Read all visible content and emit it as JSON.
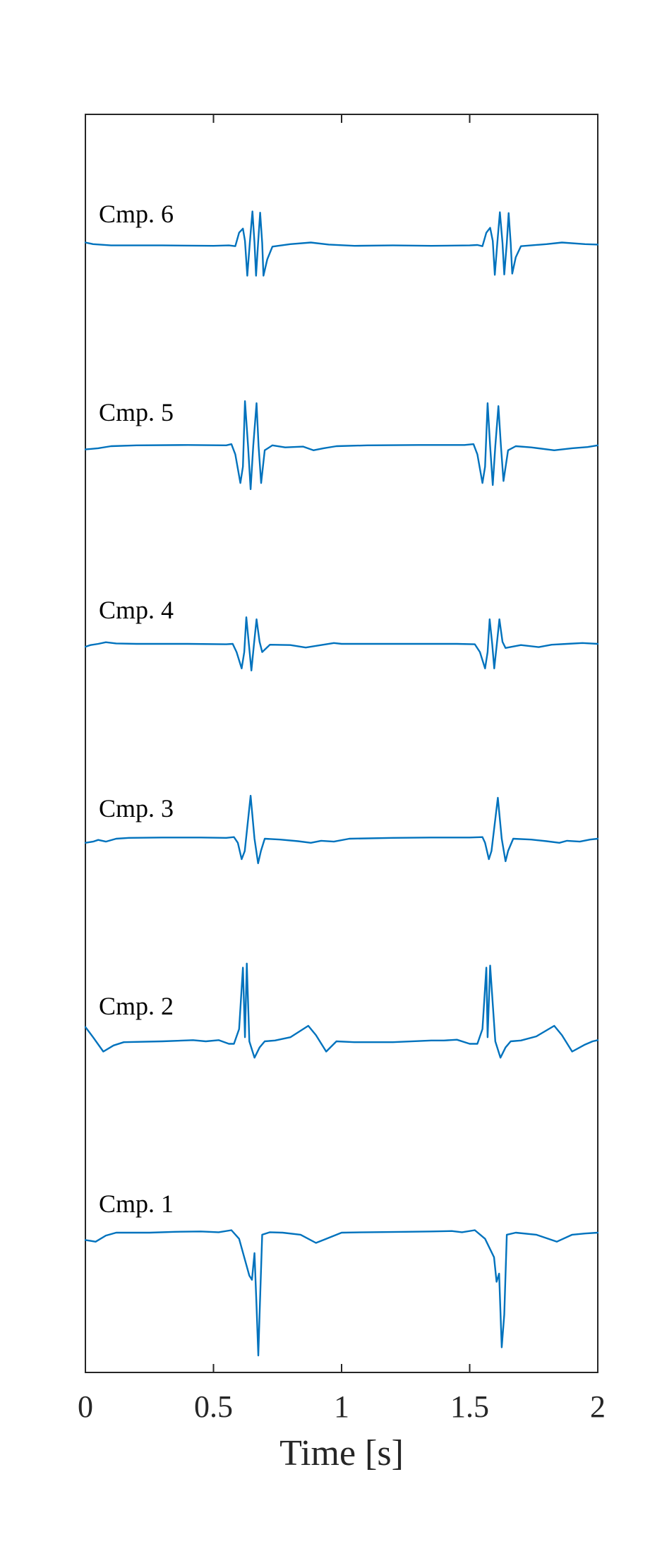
{
  "chart_data": {
    "type": "line",
    "title": "",
    "xlabel": "Time [s]",
    "ylabel": "",
    "xlim": [
      0,
      2
    ],
    "xticks": [
      0,
      0.5,
      1,
      1.5,
      2
    ],
    "xtick_labels": [
      "0",
      "0.5",
      "1",
      "1.5",
      "2"
    ],
    "grid": false,
    "legend": "none",
    "color": "#0072BD",
    "series": [
      {
        "name": "Cmp. 6",
        "points": [
          [
            0,
            0.06
          ],
          [
            0.03,
            0.02
          ],
          [
            0.1,
            -0.01
          ],
          [
            0.3,
            -0.01
          ],
          [
            0.5,
            -0.02
          ],
          [
            0.56,
            -0.01
          ],
          [
            0.585,
            -0.03
          ],
          [
            0.6,
            0.3
          ],
          [
            0.615,
            0.4
          ],
          [
            0.623,
            0.1
          ],
          [
            0.632,
            -0.75
          ],
          [
            0.642,
            0.06
          ],
          [
            0.652,
            0.82
          ],
          [
            0.66,
            0.05
          ],
          [
            0.666,
            -0.75
          ],
          [
            0.674,
            0.05
          ],
          [
            0.682,
            0.79
          ],
          [
            0.69,
            0.05
          ],
          [
            0.695,
            -0.75
          ],
          [
            0.71,
            -0.35
          ],
          [
            0.73,
            -0.04
          ],
          [
            0.8,
            0.02
          ],
          [
            0.88,
            0.06
          ],
          [
            0.95,
            0.01
          ],
          [
            1.05,
            -0.02
          ],
          [
            1.2,
            -0.01
          ],
          [
            1.35,
            -0.02
          ],
          [
            1.5,
            -0.01
          ],
          [
            1.53,
            0.0
          ],
          [
            1.55,
            -0.03
          ],
          [
            1.565,
            0.3
          ],
          [
            1.58,
            0.42
          ],
          [
            1.59,
            0.1
          ],
          [
            1.598,
            -0.73
          ],
          [
            1.608,
            0.06
          ],
          [
            1.618,
            0.8
          ],
          [
            1.628,
            0.05
          ],
          [
            1.635,
            -0.72
          ],
          [
            1.645,
            0.05
          ],
          [
            1.652,
            0.78
          ],
          [
            1.66,
            0.05
          ],
          [
            1.666,
            -0.7
          ],
          [
            1.68,
            -0.3
          ],
          [
            1.7,
            -0.03
          ],
          [
            1.8,
            0.02
          ],
          [
            1.86,
            0.06
          ],
          [
            1.95,
            0.02
          ],
          [
            2,
            0.01
          ]
        ]
      },
      {
        "name": "Cmp. 5",
        "points": [
          [
            0,
            -0.08
          ],
          [
            0.05,
            -0.05
          ],
          [
            0.1,
            0.0
          ],
          [
            0.2,
            0.02
          ],
          [
            0.4,
            0.03
          ],
          [
            0.55,
            0.02
          ],
          [
            0.57,
            0.05
          ],
          [
            0.585,
            -0.2
          ],
          [
            0.605,
            -0.9
          ],
          [
            0.615,
            -0.5
          ],
          [
            0.623,
            1.1
          ],
          [
            0.635,
            0.0
          ],
          [
            0.645,
            -1.05
          ],
          [
            0.655,
            0.0
          ],
          [
            0.668,
            1.05
          ],
          [
            0.676,
            0.0
          ],
          [
            0.686,
            -0.9
          ],
          [
            0.7,
            -0.1
          ],
          [
            0.73,
            0.02
          ],
          [
            0.78,
            -0.03
          ],
          [
            0.85,
            -0.01
          ],
          [
            0.89,
            -0.1
          ],
          [
            0.93,
            -0.05
          ],
          [
            0.98,
            0.0
          ],
          [
            1.1,
            0.02
          ],
          [
            1.3,
            0.03
          ],
          [
            1.48,
            0.03
          ],
          [
            1.515,
            0.05
          ],
          [
            1.53,
            -0.2
          ],
          [
            1.55,
            -0.9
          ],
          [
            1.56,
            -0.5
          ],
          [
            1.57,
            1.05
          ],
          [
            1.58,
            0.0
          ],
          [
            1.59,
            -0.95
          ],
          [
            1.6,
            0.0
          ],
          [
            1.612,
            0.98
          ],
          [
            1.622,
            0.0
          ],
          [
            1.632,
            -0.85
          ],
          [
            1.65,
            -0.1
          ],
          [
            1.68,
            0.0
          ],
          [
            1.74,
            -0.03
          ],
          [
            1.83,
            -0.1
          ],
          [
            1.9,
            -0.05
          ],
          [
            1.96,
            -0.02
          ],
          [
            2,
            0.02
          ]
        ]
      },
      {
        "name": "Cmp. 4",
        "points": [
          [
            0,
            -0.07
          ],
          [
            0.02,
            -0.03
          ],
          [
            0.05,
            0.0
          ],
          [
            0.08,
            0.04
          ],
          [
            0.12,
            0.01
          ],
          [
            0.2,
            0.0
          ],
          [
            0.4,
            0.0
          ],
          [
            0.55,
            -0.01
          ],
          [
            0.575,
            0.0
          ],
          [
            0.59,
            -0.2
          ],
          [
            0.61,
            -0.6
          ],
          [
            0.62,
            -0.2
          ],
          [
            0.628,
            0.65
          ],
          [
            0.638,
            0.0
          ],
          [
            0.648,
            -0.65
          ],
          [
            0.658,
            0.0
          ],
          [
            0.668,
            0.6
          ],
          [
            0.68,
            0.05
          ],
          [
            0.69,
            -0.2
          ],
          [
            0.72,
            -0.02
          ],
          [
            0.8,
            -0.03
          ],
          [
            0.86,
            -0.09
          ],
          [
            0.92,
            -0.03
          ],
          [
            0.97,
            0.02
          ],
          [
            1.0,
            0.0
          ],
          [
            1.2,
            0.0
          ],
          [
            1.45,
            0.0
          ],
          [
            1.52,
            -0.01
          ],
          [
            1.54,
            -0.2
          ],
          [
            1.56,
            -0.6
          ],
          [
            1.57,
            -0.2
          ],
          [
            1.578,
            0.6
          ],
          [
            1.588,
            0.0
          ],
          [
            1.596,
            -0.6
          ],
          [
            1.606,
            0.0
          ],
          [
            1.616,
            0.6
          ],
          [
            1.628,
            0.05
          ],
          [
            1.64,
            -0.1
          ],
          [
            1.7,
            -0.03
          ],
          [
            1.77,
            -0.08
          ],
          [
            1.82,
            -0.02
          ],
          [
            1.88,
            0.0
          ],
          [
            1.94,
            0.02
          ],
          [
            2,
            0.0
          ]
        ]
      },
      {
        "name": "Cmp. 3",
        "points": [
          [
            0,
            -0.1
          ],
          [
            0.03,
            -0.07
          ],
          [
            0.05,
            -0.03
          ],
          [
            0.08,
            -0.07
          ],
          [
            0.12,
            0.0
          ],
          [
            0.17,
            0.02
          ],
          [
            0.3,
            0.03
          ],
          [
            0.45,
            0.03
          ],
          [
            0.55,
            0.02
          ],
          [
            0.58,
            0.04
          ],
          [
            0.595,
            -0.1
          ],
          [
            0.61,
            -0.5
          ],
          [
            0.622,
            -0.3
          ],
          [
            0.645,
            1.05
          ],
          [
            0.66,
            0.0
          ],
          [
            0.674,
            -0.6
          ],
          [
            0.685,
            -0.3
          ],
          [
            0.7,
            0.0
          ],
          [
            0.76,
            -0.02
          ],
          [
            0.83,
            -0.06
          ],
          [
            0.88,
            -0.1
          ],
          [
            0.92,
            -0.05
          ],
          [
            0.97,
            -0.07
          ],
          [
            1.03,
            0.0
          ],
          [
            1.2,
            0.02
          ],
          [
            1.35,
            0.03
          ],
          [
            1.5,
            0.03
          ],
          [
            1.55,
            0.04
          ],
          [
            1.56,
            -0.1
          ],
          [
            1.575,
            -0.5
          ],
          [
            1.585,
            -0.3
          ],
          [
            1.61,
            1.0
          ],
          [
            1.625,
            0.0
          ],
          [
            1.64,
            -0.55
          ],
          [
            1.65,
            -0.3
          ],
          [
            1.67,
            0.0
          ],
          [
            1.74,
            -0.02
          ],
          [
            1.8,
            -0.06
          ],
          [
            1.85,
            -0.1
          ],
          [
            1.88,
            -0.05
          ],
          [
            1.93,
            -0.07
          ],
          [
            1.97,
            -0.02
          ],
          [
            2,
            0.0
          ]
        ]
      },
      {
        "name": "Cmp. 2",
        "points": [
          [
            0,
            0.35
          ],
          [
            0.03,
            0.1
          ],
          [
            0.07,
            -0.25
          ],
          [
            0.11,
            -0.1
          ],
          [
            0.15,
            -0.02
          ],
          [
            0.3,
            0.0
          ],
          [
            0.42,
            0.03
          ],
          [
            0.47,
            0.0
          ],
          [
            0.52,
            0.03
          ],
          [
            0.56,
            -0.06
          ],
          [
            0.58,
            -0.06
          ],
          [
            0.6,
            0.3
          ],
          [
            0.615,
            1.8
          ],
          [
            0.623,
            0.1
          ],
          [
            0.63,
            1.9
          ],
          [
            0.64,
            0.0
          ],
          [
            0.66,
            -0.4
          ],
          [
            0.68,
            -0.15
          ],
          [
            0.7,
            0.0
          ],
          [
            0.74,
            0.02
          ],
          [
            0.8,
            0.1
          ],
          [
            0.87,
            0.38
          ],
          [
            0.9,
            0.15
          ],
          [
            0.94,
            -0.25
          ],
          [
            0.98,
            0.0
          ],
          [
            1.05,
            -0.02
          ],
          [
            1.2,
            -0.02
          ],
          [
            1.35,
            0.02
          ],
          [
            1.4,
            0.02
          ],
          [
            1.45,
            0.04
          ],
          [
            1.5,
            -0.06
          ],
          [
            1.53,
            -0.06
          ],
          [
            1.55,
            0.3
          ],
          [
            1.565,
            1.8
          ],
          [
            1.57,
            0.1
          ],
          [
            1.58,
            1.85
          ],
          [
            1.6,
            0.0
          ],
          [
            1.62,
            -0.4
          ],
          [
            1.64,
            -0.15
          ],
          [
            1.66,
            0.0
          ],
          [
            1.7,
            0.02
          ],
          [
            1.76,
            0.12
          ],
          [
            1.83,
            0.38
          ],
          [
            1.86,
            0.15
          ],
          [
            1.9,
            -0.25
          ],
          [
            1.95,
            -0.08
          ],
          [
            1.98,
            0.0
          ],
          [
            2,
            0.03
          ]
        ]
      },
      {
        "name": "Cmp. 1",
        "points": [
          [
            0,
            -0.18
          ],
          [
            0.04,
            -0.22
          ],
          [
            0.08,
            -0.07
          ],
          [
            0.12,
            0.0
          ],
          [
            0.25,
            0.0
          ],
          [
            0.35,
            0.02
          ],
          [
            0.45,
            0.03
          ],
          [
            0.52,
            0.01
          ],
          [
            0.57,
            0.06
          ],
          [
            0.6,
            -0.15
          ],
          [
            0.64,
            -1.05
          ],
          [
            0.65,
            -1.15
          ],
          [
            0.66,
            -0.5
          ],
          [
            0.668,
            -1.8
          ],
          [
            0.675,
            -3.0
          ],
          [
            0.68,
            -2.0
          ],
          [
            0.69,
            -0.05
          ],
          [
            0.72,
            0.01
          ],
          [
            0.77,
            0.0
          ],
          [
            0.84,
            -0.05
          ],
          [
            0.9,
            -0.25
          ],
          [
            0.94,
            -0.15
          ],
          [
            1.0,
            0.0
          ],
          [
            1.1,
            0.01
          ],
          [
            1.25,
            0.02
          ],
          [
            1.35,
            0.03
          ],
          [
            1.43,
            0.04
          ],
          [
            1.47,
            0.01
          ],
          [
            1.52,
            0.06
          ],
          [
            1.56,
            -0.15
          ],
          [
            1.595,
            -0.6
          ],
          [
            1.605,
            -1.2
          ],
          [
            1.615,
            -1.0
          ],
          [
            1.625,
            -2.8
          ],
          [
            1.635,
            -2.0
          ],
          [
            1.645,
            -0.05
          ],
          [
            1.68,
            0.0
          ],
          [
            1.76,
            -0.05
          ],
          [
            1.84,
            -0.22
          ],
          [
            1.9,
            -0.05
          ],
          [
            1.95,
            -0.02
          ],
          [
            2,
            0.0
          ]
        ]
      }
    ]
  }
}
